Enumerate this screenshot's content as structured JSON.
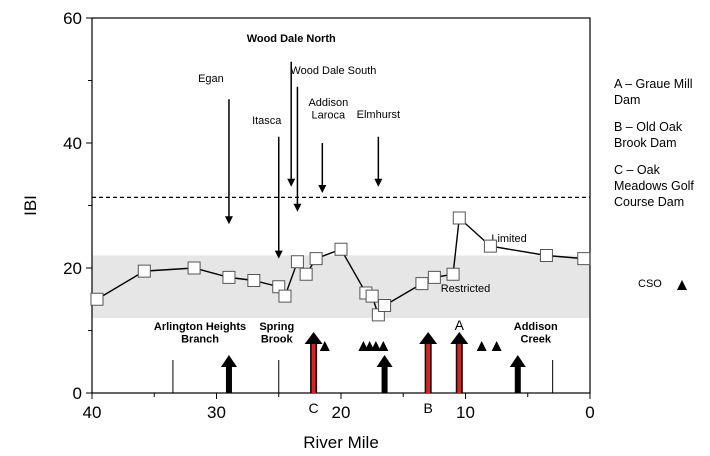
{
  "chart_data": {
    "type": "line",
    "title": "",
    "xlabel": "River Mile",
    "ylabel": "IBI",
    "xlim": [
      40,
      0
    ],
    "ylim": [
      0,
      60
    ],
    "x_ticks": [
      40,
      30,
      20,
      10,
      0
    ],
    "y_ticks": [
      0,
      20,
      40,
      60
    ],
    "grid": false,
    "series": [
      {
        "x": [
          39.6,
          35.8,
          31.8,
          29,
          27,
          25,
          24.5,
          23.5,
          22.8,
          22,
          20,
          18,
          17.5,
          17,
          16.5,
          13.5,
          12.5,
          11,
          10.5,
          8,
          3.5,
          0.5
        ],
        "y": [
          15,
          19.5,
          20,
          18.5,
          18,
          17,
          15.5,
          21,
          19,
          21.5,
          23,
          16,
          15.5,
          12.5,
          14,
          17.5,
          18.5,
          19,
          28,
          23.5,
          22,
          21.5
        ]
      }
    ],
    "limited_threshold": 31.3,
    "restricted_band": [
      12,
      22
    ],
    "band_labels": {
      "limited": "Limited",
      "restricted": "Restricted"
    },
    "annotations": [
      {
        "label": "Egan",
        "x": 29,
        "y_from": 47,
        "y_to": 27
      },
      {
        "label": "Itasca",
        "x": 25,
        "y_from": 41,
        "y_to": 21.5
      },
      {
        "label": "Wood Dale North",
        "x": 24,
        "y_from": 53,
        "y_to": 33
      },
      {
        "label": "Wood Dale South",
        "x": 23.5,
        "y_from": 49,
        "y_to": 29
      },
      {
        "label": "Addison\nLaroca",
        "x": 21.5,
        "y_from": 40,
        "y_to": 32
      },
      {
        "label": "Elmhurst",
        "x": 17,
        "y_from": 41,
        "y_to": 33
      }
    ],
    "tributaries": [
      {
        "label": "Arlington Heights\nBranch",
        "x": 31
      },
      {
        "label": "Spring\nBrook",
        "x": 25
      },
      {
        "label": "Addison\nCreek",
        "x": 5
      }
    ],
    "dams": [
      {
        "letter": "A",
        "x": 10.5
      },
      {
        "letter": "B",
        "x": 13
      },
      {
        "letter": "C",
        "x": 22.2
      }
    ],
    "small_arrows_x": [
      29,
      16.5,
      5.8
    ],
    "cso_x": [
      21.3,
      18.2,
      17.7,
      17.2,
      16.6,
      8.7,
      7.5
    ],
    "dam_notes": [
      "A – Graue Mill Dam",
      "B – Old Oak Brook Dam",
      "C – Oak Meadows Golf Course Dam"
    ],
    "cso_legend": "CSO"
  }
}
